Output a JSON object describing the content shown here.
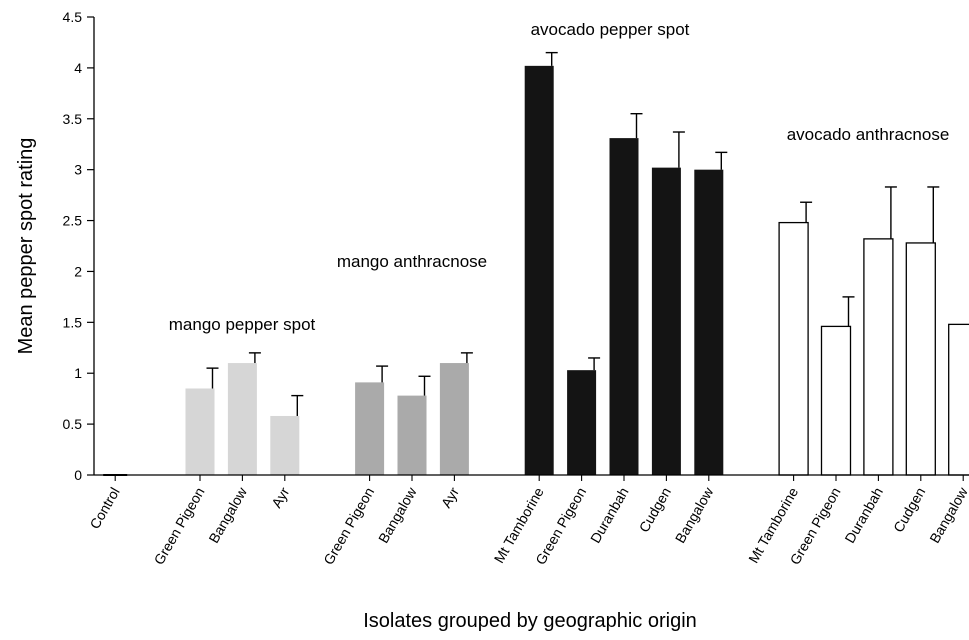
{
  "chart_data": {
    "type": "bar",
    "title": "",
    "xlabel": "Isolates grouped by geographic origin",
    "ylabel": "Mean pepper spot rating",
    "ylim": [
      0,
      4.5
    ],
    "yticks": [
      "0",
      "0.5",
      "1",
      "1.5",
      "2",
      "2.5",
      "3",
      "3.5",
      "4",
      "4.5"
    ],
    "error_bars": true,
    "grid": false,
    "groups": [
      {
        "label": "",
        "fill": "#000000",
        "categories": [
          "Control"
        ],
        "values": [
          0
        ],
        "errors": [
          0
        ]
      },
      {
        "label": "mango pepper spot",
        "fill": "#d6d6d6",
        "categories": [
          "Green Pigeon",
          "Bangalow",
          "Ayr"
        ],
        "values": [
          0.85,
          1.1,
          0.58
        ],
        "errors": [
          0.2,
          0.1,
          0.2
        ]
      },
      {
        "label": "mango anthracnose",
        "fill": "#aaaaaa",
        "categories": [
          "Green Pigeon",
          "Bangalow",
          "Ayr"
        ],
        "values": [
          0.91,
          0.78,
          1.1
        ],
        "errors": [
          0.16,
          0.19,
          0.1
        ]
      },
      {
        "label": "avocado pepper spot",
        "fill": "#141414",
        "categories": [
          "Mt Tamborine",
          "Green Pigeon",
          "Duranbah",
          "Cudgen",
          "Bangalow"
        ],
        "values": [
          4.02,
          1.03,
          3.31,
          3.02,
          3.0
        ],
        "errors": [
          0.13,
          0.12,
          0.24,
          0.35,
          0.17
        ]
      },
      {
        "label": "avocado anthracnose",
        "fill": "#ffffff",
        "categories": [
          "Mt Tamborine",
          "Green Pigeon",
          "Duranbah",
          "Cudgen",
          "Bangalow"
        ],
        "values": [
          2.48,
          1.46,
          2.32,
          2.28,
          1.48
        ],
        "errors": [
          0.2,
          0.29,
          0.51,
          0.55,
          0.13
        ]
      }
    ]
  }
}
